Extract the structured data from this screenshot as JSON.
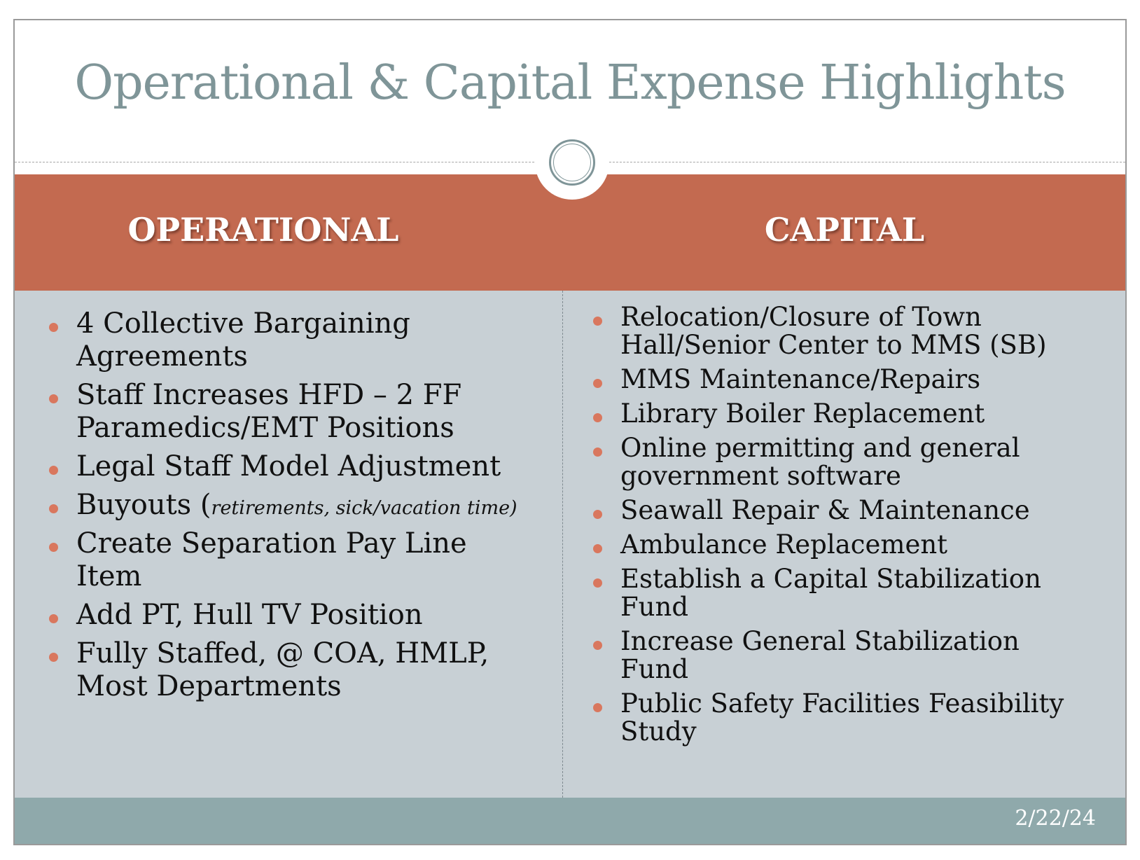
{
  "title": "Operational & Capital Expense Highlights",
  "colors": {
    "title": "#7f9598",
    "header_band": "#c36a50",
    "body_band": "#c8d0d5",
    "footer_band": "#8fa9ab",
    "bullet": "#d9775e"
  },
  "operational": {
    "heading": "OPERATIONAL",
    "items": [
      {
        "text": "4 Collective Bargaining Agreements"
      },
      {
        "text": "Staff Increases HFD – 2 FF Paramedics/EMT Positions"
      },
      {
        "text": "Legal Staff Model Adjustment"
      },
      {
        "text": "Buyouts (",
        "note": "retirements, sick/vacation time)"
      },
      {
        "text": "Create Separation Pay Line Item"
      },
      {
        "text": "Add PT, Hull TV Position"
      },
      {
        "text": "Fully Staffed, @ COA, HMLP, Most Departments"
      }
    ]
  },
  "capital": {
    "heading": "CAPITAL",
    "items": [
      {
        "text": "Relocation/Closure of Town Hall/Senior Center to MMS (SB)"
      },
      {
        "text": "MMS Maintenance/Repairs"
      },
      {
        "text": "Library Boiler Replacement"
      },
      {
        "text": "Online permitting and general government software"
      },
      {
        "text": "Seawall Repair & Maintenance"
      },
      {
        "text": "Ambulance Replacement"
      },
      {
        "text": "Establish a Capital Stabilization Fund"
      },
      {
        "text": "Increase General Stabilization Fund"
      },
      {
        "text": "Public Safety Facilities Feasibility Study"
      }
    ]
  },
  "footer": {
    "date": "2/22/24"
  }
}
